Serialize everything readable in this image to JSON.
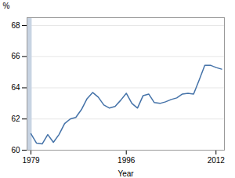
{
  "chart_data": {
    "type": "line",
    "xlabel": "Year",
    "ylabel": "%",
    "x": [
      1979,
      1980,
      1981,
      1982,
      1983,
      1984,
      1985,
      1986,
      1987,
      1988,
      1989,
      1990,
      1991,
      1992,
      1993,
      1994,
      1995,
      1996,
      1997,
      1998,
      1999,
      2000,
      2001,
      2002,
      2003,
      2004,
      2005,
      2006,
      2007,
      2008,
      2009,
      2010,
      2011,
      2012,
      2013
    ],
    "values": [
      61.05,
      60.45,
      60.4,
      61.0,
      60.5,
      61.0,
      61.7,
      62.0,
      62.1,
      62.6,
      63.3,
      63.7,
      63.4,
      62.9,
      62.7,
      62.8,
      63.2,
      63.65,
      63.0,
      62.7,
      63.5,
      63.6,
      63.05,
      63.0,
      63.1,
      63.25,
      63.35,
      63.6,
      63.65,
      63.6,
      64.5,
      65.45,
      65.45,
      65.3,
      65.2
    ],
    "color": "#4472a8",
    "xlim": [
      1978.3,
      2013.5
    ],
    "xticks": [
      1979,
      1996,
      2012
    ],
    "ylim": [
      60,
      68.5
    ],
    "yticks": [
      60,
      62,
      64,
      66,
      68
    ],
    "grid": true,
    "spans": [
      {
        "x1": 1978.3,
        "x2": 1979.2,
        "color": "#c8d4e3"
      }
    ]
  }
}
